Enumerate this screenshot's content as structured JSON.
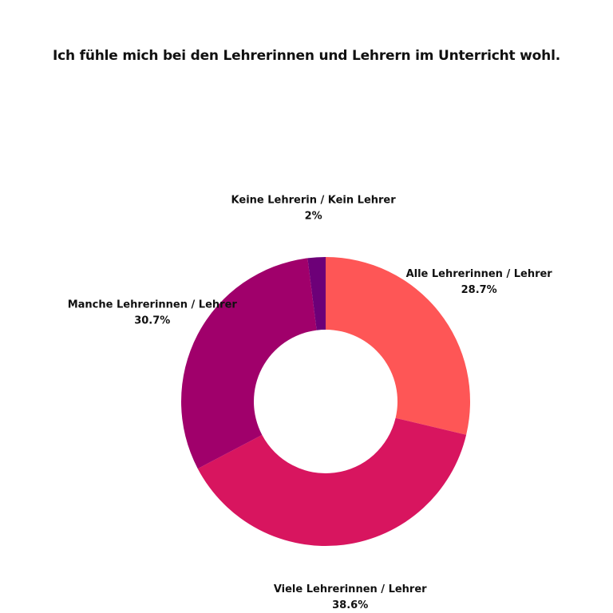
{
  "chart_data": {
    "type": "pie",
    "title": "Ich fühle mich bei den Lehrerinnen und Lehrern im Unterricht wohl.",
    "slices": [
      {
        "label": "Alle Lehrerinnen / Lehrer",
        "value": 28.7,
        "value_label": "28.7%",
        "color": "#fe5656"
      },
      {
        "label": "Viele Lehrerinnen / Lehrer",
        "value": 38.6,
        "value_label": "38.6%",
        "color": "#d8155f"
      },
      {
        "label": "Manche Lehrerinnen / Lehrer",
        "value": 30.7,
        "value_label": "30.7%",
        "color": "#a0006b"
      },
      {
        "label": "Keine Lehrerin / Kein Lehrer",
        "value": 2,
        "value_label": "2%",
        "color": "#6d0078"
      }
    ],
    "donut": true,
    "start_angle": "top",
    "direction": "clockwise",
    "legend": "none"
  }
}
